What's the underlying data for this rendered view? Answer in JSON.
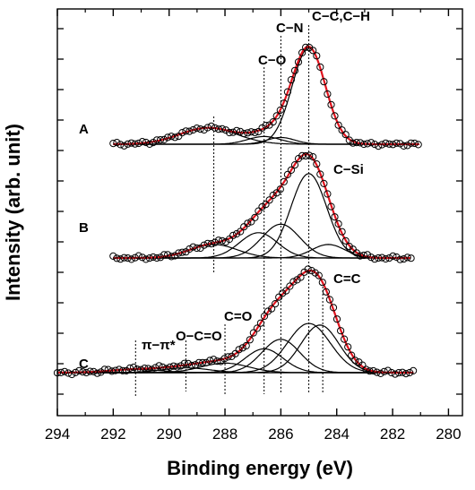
{
  "chart_data": {
    "type": "line",
    "xlabel": "Binding energy (eV)",
    "ylabel": "Intensity (arb. unit)",
    "xlim": [
      294,
      279.5
    ],
    "x_reversed": true,
    "x_ticks": [
      "294",
      "292",
      "290",
      "288",
      "286",
      "284",
      "282",
      "280"
    ],
    "y_ticks_labeled": false,
    "grid": false,
    "colors": {
      "experimental": "#000000",
      "envelope": "#e0141e",
      "components": "#000000",
      "refs": "#000000"
    },
    "reference_lines_ev": [
      291.2,
      289.4,
      288.0,
      286.6,
      286.0,
      285.0,
      284.5
    ],
    "annotations": [
      {
        "text": "C−C,C−H",
        "x": 284.5
      },
      {
        "text": "C−N",
        "x": 286.0
      },
      {
        "text": "C−O",
        "x": 287.0
      },
      {
        "text": "C−Si",
        "x": 283.9
      },
      {
        "text": "C=C",
        "x": 284.4
      },
      {
        "text": "C=O",
        "x": 288.0
      },
      {
        "text": "O−C=O",
        "x": 289.8
      },
      {
        "text": "π−π*",
        "x": 291.2
      }
    ],
    "panels": [
      {
        "label": "A",
        "x_range": [
          292.0,
          281.0
        ],
        "components": [
          {
            "center": 285.0,
            "height": 100,
            "fwhm": 1.4
          },
          {
            "center": 286.0,
            "height": 7,
            "fwhm": 1.2
          },
          {
            "center": 286.6,
            "height": 8,
            "fwhm": 1.4
          },
          {
            "center": 288.6,
            "height": 17,
            "fwhm": 2.4
          }
        ]
      },
      {
        "label": "B",
        "x_range": [
          292.0,
          281.3
        ],
        "components": [
          {
            "center": 285.0,
            "height": 100,
            "fwhm": 1.5
          },
          {
            "center": 286.0,
            "height": 40,
            "fwhm": 1.6
          },
          {
            "center": 286.8,
            "height": 30,
            "fwhm": 1.6
          },
          {
            "center": 288.4,
            "height": 16,
            "fwhm": 2.0
          },
          {
            "center": 284.3,
            "height": 16,
            "fwhm": 1.4
          }
        ]
      },
      {
        "label": "C",
        "x_range": [
          294.0,
          281.2
        ],
        "components": [
          {
            "center": 284.6,
            "height": 60,
            "fwhm": 1.6
          },
          {
            "center": 285.0,
            "height": 62,
            "fwhm": 1.8
          },
          {
            "center": 286.0,
            "height": 42,
            "fwhm": 1.6
          },
          {
            "center": 286.6,
            "height": 30,
            "fwhm": 1.6
          },
          {
            "center": 288.0,
            "height": 12,
            "fwhm": 2.0
          },
          {
            "center": 289.4,
            "height": 6,
            "fwhm": 2.0
          },
          {
            "center": 291.2,
            "height": 4,
            "fwhm": 2.2
          }
        ]
      }
    ]
  }
}
